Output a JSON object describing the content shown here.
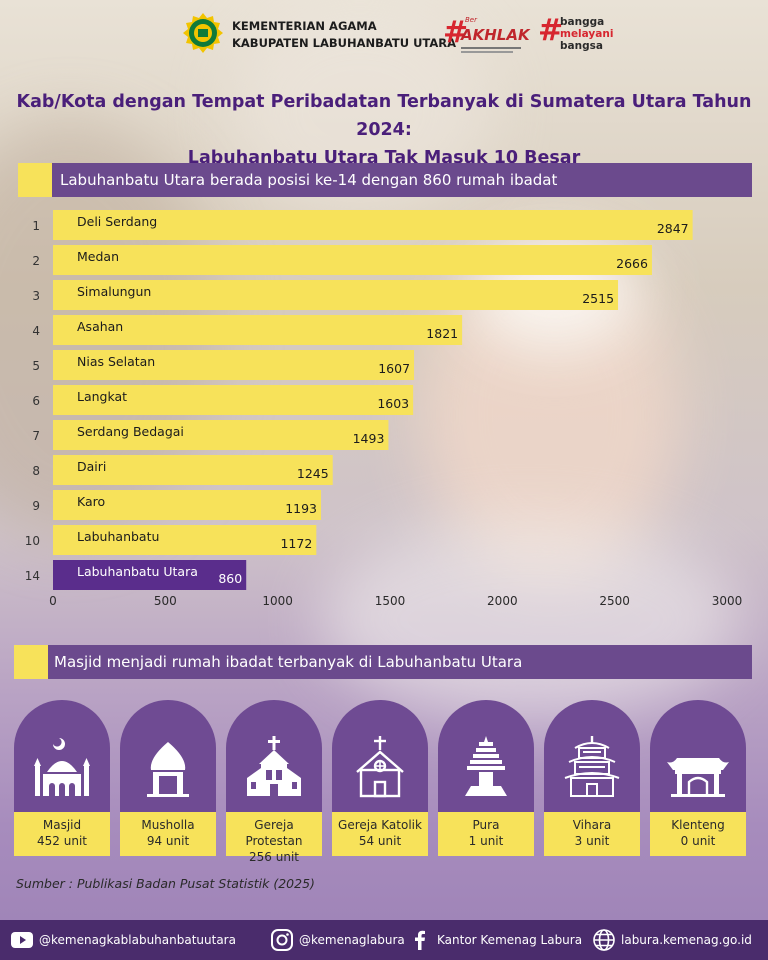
{
  "header": {
    "org_line1": "KEMENTERIAN AGAMA",
    "org_line2": "KABUPATEN LABUHANBATU UTARA",
    "akhlak_ber": "Ber",
    "akhlak_word": "AKHLAK",
    "bangga_line1": "bangga",
    "bangga_line2": "melayani",
    "bangga_line3": "bangsa",
    "hash": "#"
  },
  "title_line1": "Kab/Kota dengan Tempat Peribadatan Terbanyak di Sumatera Utara Tahun 2024:",
  "title_line2": "Labuhanbatu Utara Tak Masuk 10 Besar",
  "section1": "Labuhanbatu Utara berada posisi ke-14 dengan 860 rumah ibadat",
  "section2": "Masjid menjadi rumah ibadat terbanyak di Labuhanbatu Utara",
  "chart_data": {
    "type": "bar",
    "orientation": "horizontal",
    "ranks": [
      "1",
      "2",
      "3",
      "4",
      "5",
      "6",
      "7",
      "8",
      "9",
      "10",
      "14"
    ],
    "categories": [
      "Deli Serdang",
      "Medan",
      "Simalungun",
      "Asahan",
      "Nias Selatan",
      "Langkat",
      "Serdang Bedagai",
      "Dairi",
      "Karo",
      "Labuhanbatu",
      "Labuhanbatu Utara"
    ],
    "values": [
      2847,
      2666,
      2515,
      1821,
      1607,
      1603,
      1493,
      1245,
      1193,
      1172,
      860
    ],
    "xlim": [
      0,
      3000
    ],
    "xticks": [
      0,
      500,
      1000,
      1500,
      2000,
      2500,
      3000
    ],
    "highlight_index": 10,
    "colors": {
      "bar": "#f7e25a",
      "highlight": "#5a2d8c",
      "label": "#1c1c1c",
      "highlight_label": "#ffffff"
    },
    "grid": false
  },
  "worship": [
    {
      "name": "Masjid",
      "value": "452 unit",
      "icon": "mosque-icon"
    },
    {
      "name": "Musholla",
      "value": "94 unit",
      "icon": "musholla-icon"
    },
    {
      "name": "Gereja Protestan",
      "value": "256 unit",
      "icon": "protestant-church-icon"
    },
    {
      "name": "Gereja Katolik",
      "value": "54 unit",
      "icon": "catholic-church-icon"
    },
    {
      "name": "Pura",
      "value": "1 unit",
      "icon": "pura-icon"
    },
    {
      "name": "Vihara",
      "value": "3 unit",
      "icon": "vihara-icon"
    },
    {
      "name": "Klenteng",
      "value": "0 unit",
      "icon": "klenteng-icon"
    }
  ],
  "source": "Sumber : Publikasi Badan Pusat Statistik (2025)",
  "footer": {
    "youtube": "@kemenagkablabuhanbatuutara",
    "instagram": "@kemenaglabura",
    "facebook": "Kantor Kemenag Labura",
    "website": "labura.kemenag.go.id"
  }
}
